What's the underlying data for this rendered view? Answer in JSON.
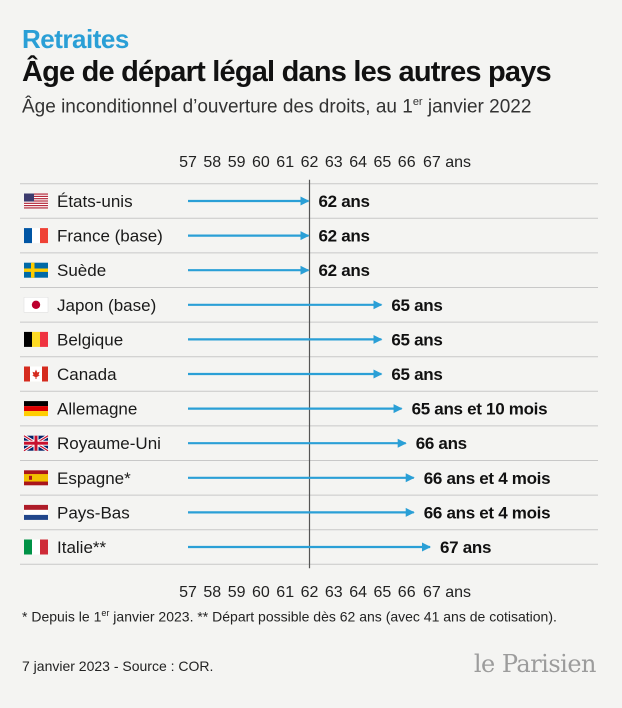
{
  "header": {
    "kicker": "Retraites",
    "title": "Âge de départ légal dans les autres pays",
    "subtitle_main": "Âge inconditionnel d’ouverture des droits, au 1",
    "subtitle_sup": "er",
    "subtitle_end": " janvier 2022"
  },
  "chart_data": {
    "type": "bar",
    "style": "arrow",
    "axis_ticks": [
      "57",
      "58",
      "59",
      "60",
      "61",
      "62",
      "63",
      "64",
      "65",
      "66",
      "67 ans"
    ],
    "xlim": [
      57,
      67
    ],
    "reference_line": 62,
    "categories": [
      "États-unis",
      "France (base)",
      "Suède",
      "Japon (base)",
      "Belgique",
      "Canada",
      "Allemagne",
      "Royaume-Uni",
      "Espagne*",
      "Pays-Bas",
      "Italie**"
    ],
    "values": [
      62,
      62,
      62,
      65,
      65,
      65,
      65.83,
      66,
      66.33,
      66.33,
      67
    ],
    "value_labels": [
      "62 ans",
      "62 ans",
      "62 ans",
      "65 ans",
      "65 ans",
      "65 ans",
      "65 ans et 10 mois",
      "66 ans",
      "66 ans et 4 mois",
      "66 ans et 4 mois",
      "67 ans"
    ],
    "flags": [
      "us-flag-icon",
      "france-flag-icon",
      "sweden-flag-icon",
      "japan-flag-icon",
      "belgium-flag-icon",
      "canada-flag-icon",
      "germany-flag-icon",
      "uk-flag-icon",
      "spain-flag-icon",
      "netherlands-flag-icon",
      "italy-flag-icon"
    ],
    "colors": {
      "arrow": "#2a9fd6",
      "reference_line": "#555555",
      "row_divider": "#c8c8c8"
    }
  },
  "notes": {
    "n1": "* Depuis le 1",
    "n1_sup": "er",
    "n1_end": " janvier 2023. ** Départ possible dès 62 ans (avec 41 ans de cotisation)."
  },
  "footer": {
    "source": "7 janvier 2023 - Source : COR.",
    "logo": "le Parisien"
  }
}
